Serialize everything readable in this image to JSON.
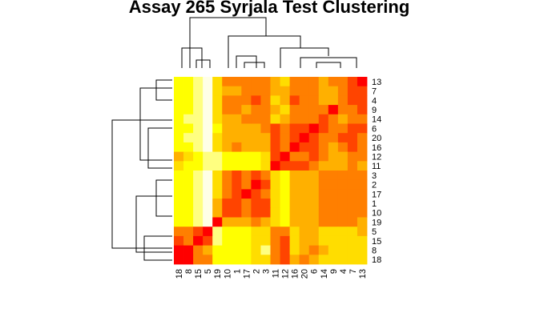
{
  "chart_data": {
    "type": "heatmap",
    "title": "Assay 265 Syrjala Test Clustering",
    "row_labels": [
      "13",
      "7",
      "4",
      "9",
      "14",
      "6",
      "20",
      "16",
      "12",
      "11",
      "3",
      "2",
      "17",
      "1",
      "10",
      "19",
      "5",
      "15",
      "8",
      "18"
    ],
    "col_labels": [
      "18",
      "8",
      "15",
      "5",
      "19",
      "10",
      "1",
      "17",
      "2",
      "3",
      "11",
      "12",
      "16",
      "20",
      "6",
      "14",
      "9",
      "4",
      "7",
      "13"
    ],
    "color_scale": [
      "#ff0000",
      "#ff4400",
      "#ff7f00",
      "#ffb000",
      "#ffdd00",
      "#ffff00",
      "#ffff80",
      "#ffffe6"
    ],
    "legend": false,
    "values": [
      [
        5,
        5,
        6,
        7,
        4,
        2,
        2,
        2,
        2,
        2,
        3,
        4,
        2,
        2,
        2,
        3,
        2,
        2,
        1,
        0
      ],
      [
        5,
        5,
        6,
        7,
        4,
        3,
        3,
        2,
        2,
        2,
        3,
        3,
        2,
        2,
        2,
        3,
        3,
        2,
        1,
        1
      ],
      [
        5,
        5,
        6,
        7,
        4,
        2,
        2,
        2,
        1,
        2,
        4,
        3,
        1,
        2,
        2,
        3,
        3,
        2,
        1,
        1
      ],
      [
        5,
        5,
        6,
        7,
        4,
        2,
        2,
        3,
        2,
        2,
        3,
        4,
        2,
        2,
        2,
        2,
        0,
        2,
        2,
        1
      ],
      [
        5,
        6,
        6,
        7,
        4,
        3,
        3,
        2,
        2,
        2,
        4,
        3,
        2,
        2,
        2,
        1,
        2,
        3,
        2,
        2
      ],
      [
        5,
        5,
        6,
        7,
        5,
        3,
        3,
        3,
        3,
        2,
        1,
        2,
        1,
        1,
        0,
        1,
        2,
        2,
        1,
        1
      ],
      [
        5,
        6,
        6,
        7,
        4,
        3,
        3,
        3,
        3,
        3,
        1,
        2,
        1,
        0,
        1,
        2,
        2,
        1,
        1,
        2
      ],
      [
        5,
        5,
        6,
        7,
        4,
        3,
        2,
        3,
        3,
        3,
        1,
        2,
        0,
        1,
        1,
        2,
        3,
        2,
        1,
        2
      ],
      [
        3,
        4,
        5,
        6,
        6,
        5,
        5,
        5,
        5,
        4,
        1,
        0,
        2,
        2,
        1,
        2,
        3,
        3,
        2,
        2
      ],
      [
        4,
        5,
        5,
        6,
        6,
        5,
        5,
        5,
        5,
        4,
        0,
        1,
        1,
        1,
        2,
        3,
        3,
        3,
        2,
        3
      ],
      [
        5,
        5,
        6,
        7,
        4,
        2,
        1,
        2,
        1,
        2,
        4,
        5,
        3,
        3,
        3,
        2,
        2,
        2,
        2,
        2
      ],
      [
        5,
        5,
        6,
        7,
        4,
        2,
        1,
        2,
        0,
        1,
        4,
        5,
        3,
        3,
        3,
        2,
        2,
        2,
        2,
        2
      ],
      [
        5,
        5,
        6,
        7,
        4,
        2,
        1,
        0,
        1,
        2,
        4,
        5,
        3,
        3,
        3,
        2,
        2,
        2,
        2,
        2
      ],
      [
        5,
        5,
        6,
        7,
        3,
        1,
        1,
        2,
        1,
        1,
        4,
        5,
        3,
        3,
        3,
        2,
        2,
        2,
        2,
        2
      ],
      [
        5,
        5,
        6,
        7,
        3,
        1,
        1,
        2,
        1,
        1,
        4,
        5,
        3,
        3,
        3,
        2,
        2,
        2,
        2,
        2
      ],
      [
        5,
        5,
        6,
        7,
        0,
        3,
        3,
        3,
        2,
        3,
        4,
        5,
        3,
        3,
        3,
        2,
        2,
        2,
        2,
        3
      ],
      [
        2,
        2,
        1,
        0,
        6,
        5,
        5,
        5,
        4,
        4,
        2,
        2,
        4,
        3,
        3,
        4,
        4,
        4,
        4,
        3
      ],
      [
        1,
        2,
        0,
        1,
        6,
        5,
        5,
        5,
        4,
        4,
        2,
        1,
        4,
        3,
        3,
        4,
        4,
        4,
        4,
        4
      ],
      [
        0,
        0,
        2,
        3,
        5,
        5,
        5,
        5,
        4,
        6,
        2,
        1,
        4,
        3,
        2,
        3,
        4,
        4,
        4,
        4
      ],
      [
        0,
        0,
        2,
        2,
        5,
        5,
        5,
        5,
        4,
        4,
        2,
        1,
        3,
        2,
        3,
        4,
        4,
        4,
        4,
        4
      ]
    ]
  }
}
